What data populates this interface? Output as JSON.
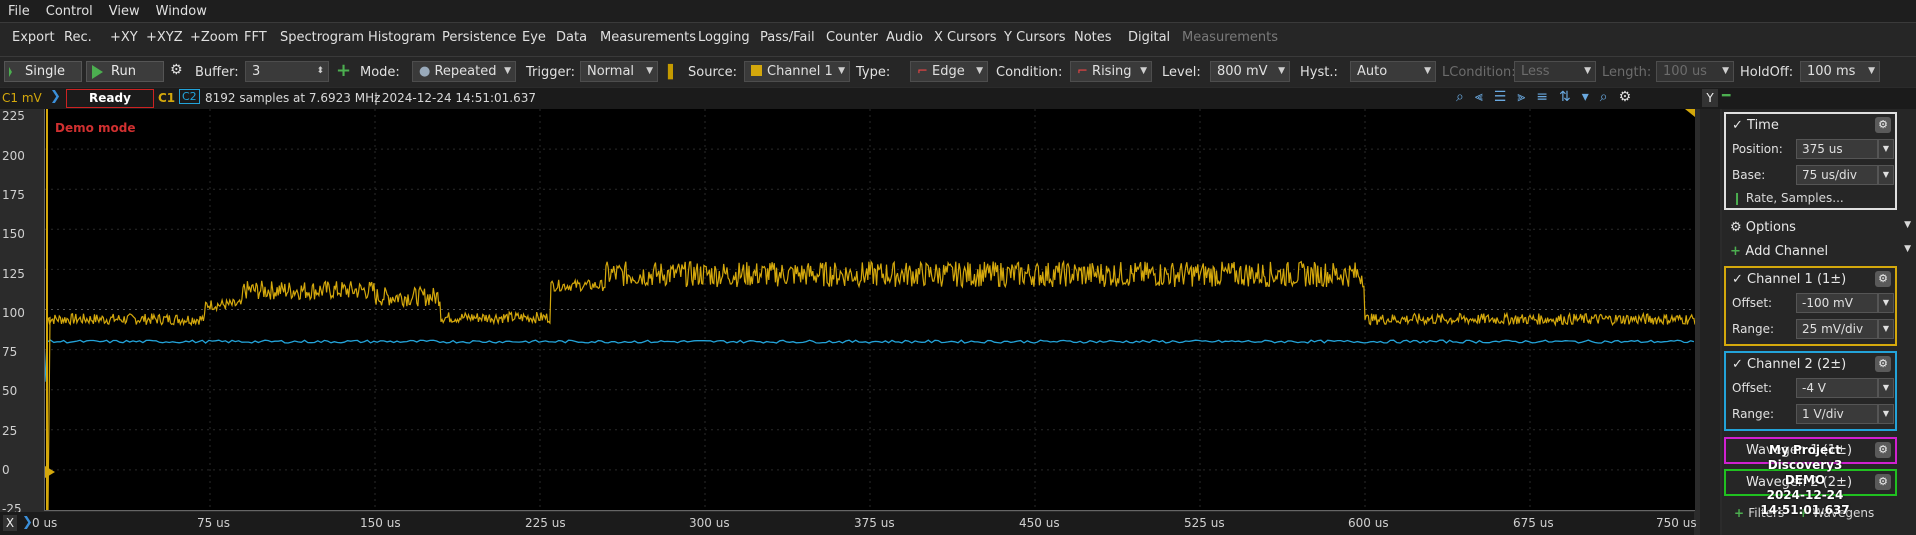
{
  "menu": [
    "File",
    "Control",
    "View",
    "Window"
  ],
  "tabs": [
    "Export",
    "Rec.",
    "+XY",
    "+XYZ",
    "+Zoom",
    "FFT",
    "Spectrogram",
    "Histogram",
    "Persistence",
    "Eye",
    "Data",
    "Measurements",
    "Logging",
    "Pass/Fail",
    "Counter",
    "Audio",
    "X Cursors",
    "Y Cursors",
    "Notes",
    "Digital"
  ],
  "tab_disabled": "Measurements",
  "controls": {
    "single": "Single",
    "run": "Run",
    "buffer_label": "Buffer:",
    "buffer_value": "3",
    "mode_label": "Mode:",
    "mode_value": "Repeated",
    "trigger_label": "Trigger:",
    "trigger_value": "Normal",
    "source_label": "Source:",
    "source_value": "Channel 1",
    "type_label": "Type:",
    "type_value": "Edge",
    "condition_label": "Condition:",
    "condition_value": "Rising",
    "level_label": "Level:",
    "level_value": "800 mV",
    "hyst_label": "Hyst.:",
    "hyst_value": "Auto",
    "lcondition_label": "LCondition:",
    "lcondition_value": "Less",
    "length_label": "Length:",
    "length_value": "100 us",
    "holdoff_label": "HoldOff:",
    "holdoff_value": "100 ms"
  },
  "status": {
    "unit": "C1 mV",
    "state": "Ready",
    "c1": "C1",
    "c2": "C2",
    "info": "8192 samples at 7.6923 MHz",
    "timestamp": "| 2024-12-24 14:51:01.637",
    "y_button": "Y"
  },
  "plot": {
    "demo_label": "Demo mode",
    "y_ticks": [
      "225",
      "200",
      "175",
      "150",
      "125",
      "100",
      "75",
      "50",
      "25",
      "0",
      "-25"
    ],
    "x_ticks": [
      "0 us",
      "75 us",
      "150 us",
      "225 us",
      "300 us",
      "375 us",
      "450 us",
      "525 us",
      "600 us",
      "675 us",
      "750 us"
    ],
    "x_button": "X",
    "ch1_color": "#d4a80c",
    "ch2_color": "#23a3d9"
  },
  "side": {
    "time_title": "Time",
    "position_label": "Position:",
    "position_value": "375 us",
    "base_label": "Base:",
    "base_value": "75 us/div",
    "rate_button": "Rate, Samples...",
    "options": "Options",
    "add_channel": "Add Channel",
    "ch1_title": "Channel 1 (1±)",
    "ch1_offset_label": "Offset:",
    "ch1_offset_value": "-100 mV",
    "ch1_range_label": "Range:",
    "ch1_range_value": "25 mV/div",
    "ch2_title": "Channel 2 (2±)",
    "ch2_offset_label": "Offset:",
    "ch2_offset_value": "-4 V",
    "ch2_range_label": "Range:",
    "ch2_range_value": "1 V/div",
    "wave1_title": "Wavegen 1 (1±)",
    "wave2_title": "Wavegen 2 (2±)",
    "filters": "Filters",
    "wavegens": "Wavegens"
  },
  "overlay": {
    "project": "My Project",
    "device": "Discovery3",
    "demo": "DEMO",
    "time": "2024-12-24 14:51:01.637"
  }
}
